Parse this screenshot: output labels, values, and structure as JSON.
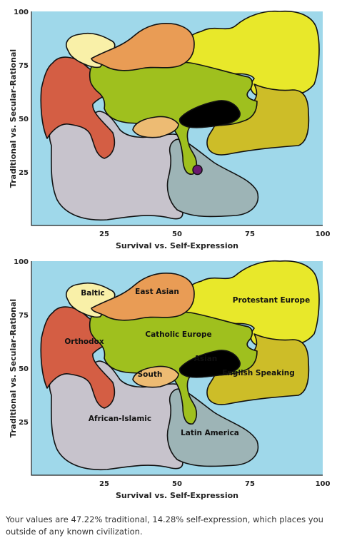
{
  "colors": {
    "background": "#9fd8ea",
    "baltic": "#f9f0a8",
    "east_asian": "#e99c55",
    "protestant_europe": "#e8e82a",
    "orthodox": "#d45e44",
    "catholic_europe": "#9fc01e",
    "south_asia": "#edbb73",
    "english_speaking": "#cdbd28",
    "african_islamic": "#c7c3cc",
    "latin_america": "#9db4b6",
    "marker": "#6b1a70"
  },
  "charts": [
    {
      "xlabel": "Survival vs. Self-Expression",
      "ylabel": "Traditional vs. Secular-Rational",
      "x_ticks": [
        "25",
        "50",
        "75",
        "100"
      ],
      "y_ticks": [
        "100",
        "75",
        "50",
        "25"
      ],
      "marker": {
        "x": 57,
        "y": 26
      },
      "regions": []
    },
    {
      "xlabel": "Survival vs. Self-Expression",
      "ylabel": "Traditional vs. Secular-Rational",
      "x_ticks": [
        "25",
        "50",
        "75",
        "100"
      ],
      "y_ticks": [
        "100",
        "75",
        "50",
        "25"
      ],
      "regions": [
        "Baltic",
        "East Asian",
        "Protestant Europe",
        "Orthodox",
        "Catholic Europe",
        "Asian",
        "South",
        "English Speaking",
        "African-Islamic",
        "Latin America"
      ]
    }
  ],
  "result_text": "Your values are 47.22% traditional, 14.28% self-expression, which places you outside of any known civilization."
}
